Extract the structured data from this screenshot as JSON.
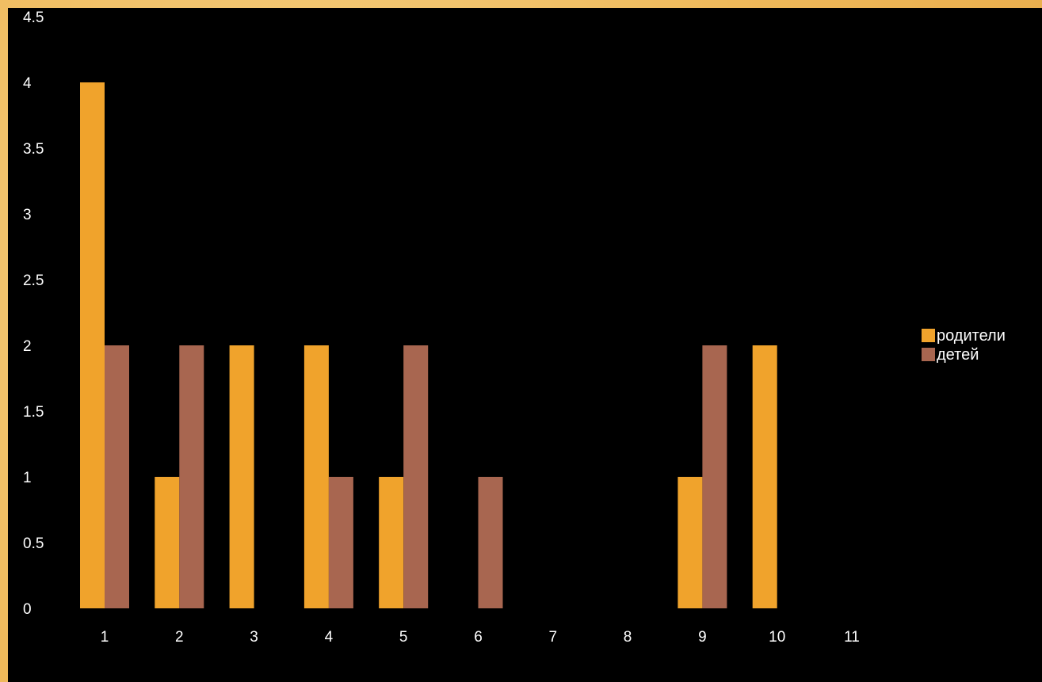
{
  "chart_data": {
    "type": "bar",
    "categories": [
      "1",
      "2",
      "3",
      "4",
      "5",
      "6",
      "7",
      "8",
      "9",
      "10",
      "11"
    ],
    "series": [
      {
        "name": "родители",
        "color": "#f0a32c",
        "values": [
          4,
          1,
          2,
          2,
          1,
          0,
          0,
          0,
          1,
          2,
          0
        ]
      },
      {
        "name": "детей",
        "color": "#a86650",
        "values": [
          2,
          2,
          0,
          1,
          2,
          1,
          0,
          0,
          2,
          0,
          0
        ]
      }
    ],
    "y_ticks": [
      "0",
      "0.5",
      "1",
      "1.5",
      "2",
      "2.5",
      "3",
      "3.5",
      "4",
      "4.5"
    ],
    "ylim": [
      0,
      4.5
    ],
    "grid": false,
    "legend_position": "right",
    "title": "",
    "xlabel": "",
    "ylabel": ""
  }
}
